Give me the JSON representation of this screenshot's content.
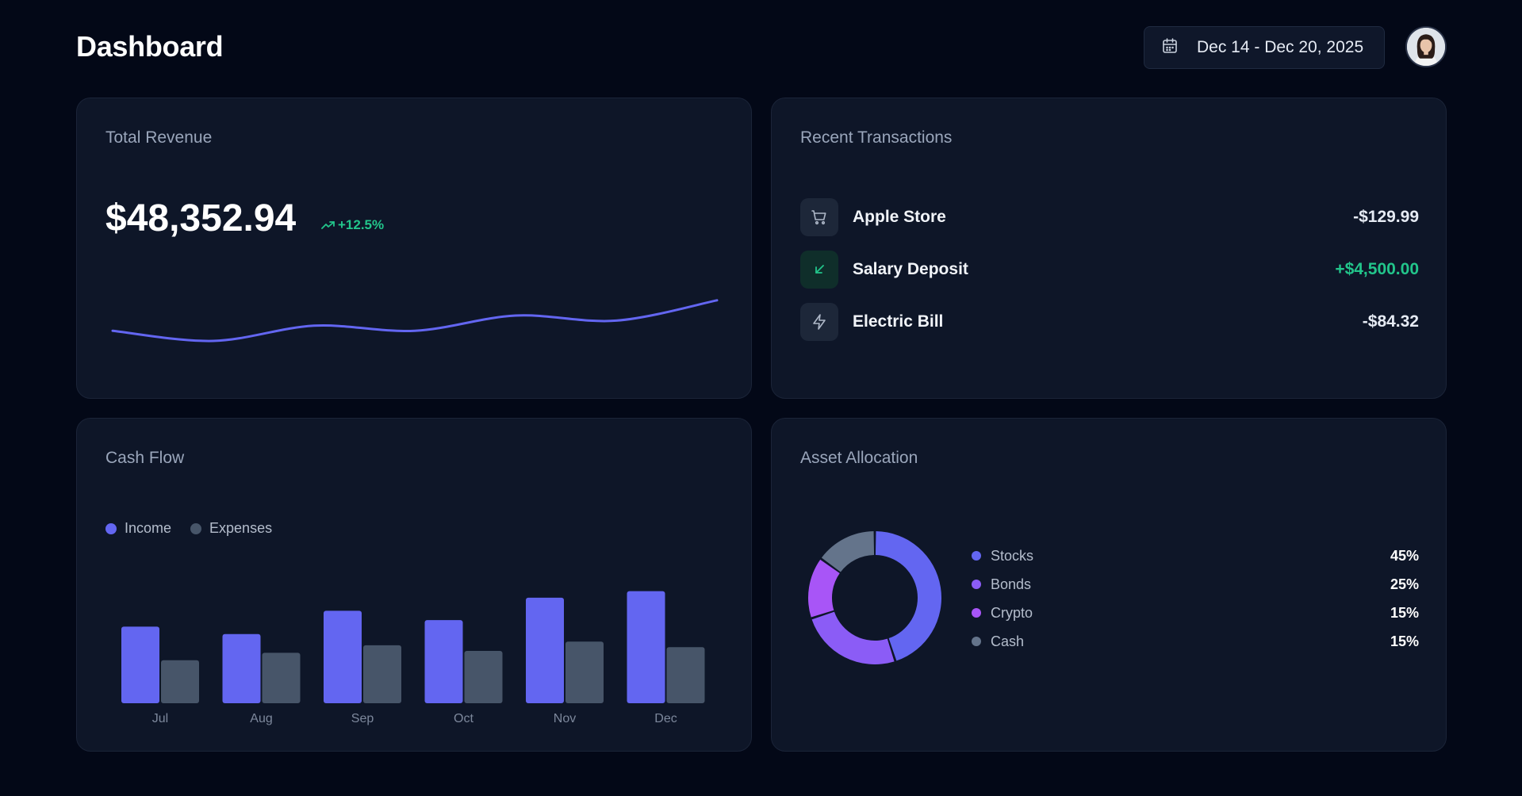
{
  "header": {
    "title": "Dashboard",
    "date_range": "Dec 14 - Dec 20, 2025",
    "calendar_icon": "calendar-icon",
    "avatar_icon": "user-avatar"
  },
  "revenue": {
    "title": "Total Revenue",
    "value": "$48,352.94",
    "change": "+12.5%",
    "change_icon": "trending-up-icon",
    "accent_color": "#6366f1",
    "positive_color": "#22c58b"
  },
  "transactions": {
    "title": "Recent Transactions",
    "items": [
      {
        "name": "Apple Store",
        "amount": "-$129.99",
        "icon": "shopping-cart-icon",
        "type": "debit"
      },
      {
        "name": "Salary Deposit",
        "amount": "+$4,500.00",
        "icon": "arrow-down-left-icon",
        "type": "credit"
      },
      {
        "name": "Electric Bill",
        "amount": "-$84.32",
        "icon": "lightning-icon",
        "type": "debit"
      }
    ]
  },
  "cashflow": {
    "title": "Cash Flow",
    "legend": [
      {
        "label": "Income",
        "color": "#6366f1"
      },
      {
        "label": "Expenses",
        "color": "#475569"
      }
    ]
  },
  "asset": {
    "title": "Asset Allocation",
    "items": [
      {
        "label": "Stocks",
        "pct": "45%",
        "value": 45,
        "color": "#6366f1"
      },
      {
        "label": "Bonds",
        "pct": "25%",
        "value": 25,
        "color": "#8b5cf6"
      },
      {
        "label": "Crypto",
        "pct": "15%",
        "value": 15,
        "color": "#a855f7"
      },
      {
        "label": "Cash",
        "pct": "15%",
        "value": 15,
        "color": "#64748b"
      }
    ]
  },
  "chart_data": [
    {
      "type": "line",
      "x": [
        0,
        1,
        2,
        3,
        4,
        5,
        6
      ],
      "values": [
        42,
        40,
        43,
        42,
        45,
        44,
        48
      ],
      "ylim": [
        30,
        55
      ],
      "grid": false,
      "color": "#6366f1"
    },
    {
      "type": "bar",
      "title": "Cash Flow",
      "categories": [
        "Jul",
        "Aug",
        "Sep",
        "Oct",
        "Nov",
        "Dec"
      ],
      "series": [
        {
          "name": "Income",
          "values": [
            8.2,
            7.4,
            9.9,
            8.9,
            11.3,
            12.0
          ],
          "color": "#6366f1"
        },
        {
          "name": "Expenses",
          "values": [
            4.6,
            5.4,
            6.2,
            5.6,
            6.6,
            6.0
          ],
          "color": "#475569"
        }
      ],
      "ylim": [
        0,
        14
      ],
      "grid": false,
      "legend": "top-left"
    },
    {
      "type": "pie",
      "title": "Asset Allocation",
      "categories": [
        "Stocks",
        "Bonds",
        "Crypto",
        "Cash"
      ],
      "values": [
        45,
        25,
        15,
        15
      ],
      "colors": [
        "#6366f1",
        "#8b5cf6",
        "#a855f7",
        "#64748b"
      ],
      "legend": "right"
    }
  ]
}
